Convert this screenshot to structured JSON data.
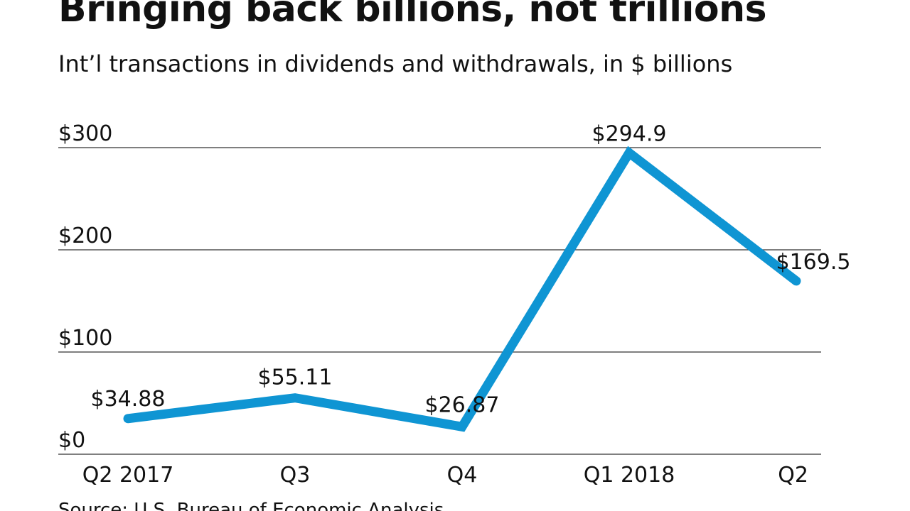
{
  "chart_data": {
    "type": "line",
    "title": "Bringing back billions, not trillions",
    "subtitle": "Int’l transactions in dividends and withdrawals, in $ billions",
    "source": "Source: U.S. Bureau of Economic Analysis",
    "categories": [
      "Q2 2017",
      "Q3",
      "Q4",
      "Q1 2018",
      "Q2"
    ],
    "series": [
      {
        "name": "Dividends and withdrawals",
        "values": [
          34.88,
          55.11,
          26.87,
          294.9,
          169.5
        ],
        "data_labels": [
          "$34.88",
          "$55.11",
          "$26.87",
          "$294.9",
          "$169.5"
        ]
      }
    ],
    "y_ticks": [
      0,
      100,
      200,
      300
    ],
    "y_tick_labels": [
      "$0",
      "$100",
      "$200",
      "$300"
    ],
    "ylim": [
      0,
      300
    ],
    "xlabel": "",
    "ylabel": "",
    "grid": true,
    "line_color": "#0f95d3",
    "grid_color": "#333333"
  }
}
